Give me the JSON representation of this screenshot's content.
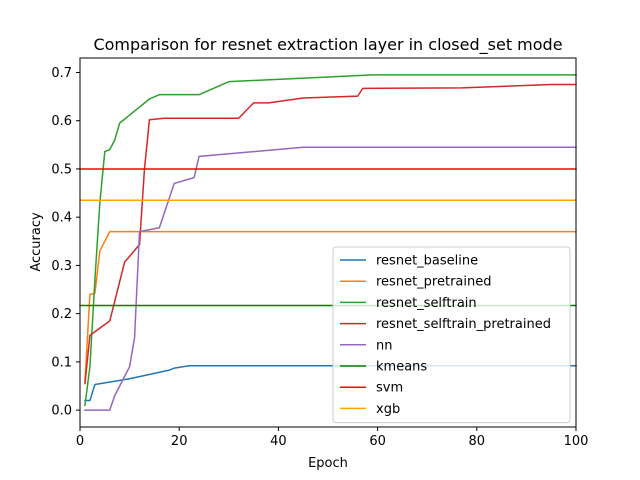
{
  "chart_data": {
    "type": "line",
    "title": "Comparison for resnet extraction layer in closed_set mode",
    "xlabel": "Epoch",
    "ylabel": "Accuracy",
    "xlim": [
      0,
      100
    ],
    "ylim": [
      -0.035,
      0.73
    ],
    "xticks": [
      0,
      20,
      40,
      60,
      80,
      100
    ],
    "yticks": [
      0.0,
      0.1,
      0.2,
      0.3,
      0.4,
      0.5,
      0.6,
      0.7
    ],
    "xtick_labels": [
      "0",
      "20",
      "40",
      "60",
      "80",
      "100"
    ],
    "ytick_labels": [
      "0.0",
      "0.1",
      "0.2",
      "0.3",
      "0.4",
      "0.5",
      "0.6",
      "0.7"
    ],
    "grid": false,
    "legend_position": "lower-right",
    "series": [
      {
        "name": "resnet_baseline",
        "color": "#1f77b4",
        "points": [
          [
            1,
            0.02
          ],
          [
            2,
            0.02
          ],
          [
            3,
            0.053
          ],
          [
            10,
            0.065
          ],
          [
            18,
            0.083
          ],
          [
            19,
            0.087
          ],
          [
            22,
            0.092
          ],
          [
            100,
            0.092
          ]
        ]
      },
      {
        "name": "resnet_pretrained",
        "color": "#ff7f0e",
        "points": [
          [
            1,
            0.06
          ],
          [
            2,
            0.24
          ],
          [
            3,
            0.242
          ],
          [
            4,
            0.33
          ],
          [
            5,
            0.35
          ],
          [
            6,
            0.37
          ],
          [
            100,
            0.37
          ]
        ]
      },
      {
        "name": "resnet_selftrain",
        "color": "#2ca02c",
        "points": [
          [
            1,
            0.01
          ],
          [
            2,
            0.09
          ],
          [
            3,
            0.27
          ],
          [
            4,
            0.43
          ],
          [
            5,
            0.536
          ],
          [
            6,
            0.54
          ],
          [
            7,
            0.56
          ],
          [
            8,
            0.595
          ],
          [
            14,
            0.645
          ],
          [
            16,
            0.654
          ],
          [
            24,
            0.654
          ],
          [
            30,
            0.681
          ],
          [
            59,
            0.695
          ],
          [
            100,
            0.695
          ]
        ]
      },
      {
        "name": "resnet_selftrain_pretrained",
        "color": "#d62728",
        "points": [
          [
            1,
            0.055
          ],
          [
            2,
            0.155
          ],
          [
            6,
            0.185
          ],
          [
            9,
            0.307
          ],
          [
            12,
            0.343
          ],
          [
            13,
            0.5
          ],
          [
            14,
            0.602
          ],
          [
            17,
            0.605
          ],
          [
            32,
            0.605
          ],
          [
            35,
            0.637
          ],
          [
            38,
            0.637
          ],
          [
            45,
            0.647
          ],
          [
            56,
            0.651
          ],
          [
            57,
            0.667
          ],
          [
            77,
            0.668
          ],
          [
            95,
            0.675
          ],
          [
            100,
            0.675
          ]
        ]
      },
      {
        "name": "nn",
        "color": "#9467bd",
        "points": [
          [
            1,
            0.0
          ],
          [
            6,
            0.0
          ],
          [
            7,
            0.03
          ],
          [
            10,
            0.09
          ],
          [
            11,
            0.15
          ],
          [
            12,
            0.37
          ],
          [
            16,
            0.378
          ],
          [
            19,
            0.47
          ],
          [
            23,
            0.482
          ],
          [
            24,
            0.526
          ],
          [
            45,
            0.545
          ],
          [
            100,
            0.545
          ]
        ]
      },
      {
        "name": "kmeans",
        "color": "#008000",
        "points": [
          [
            0,
            0.217
          ],
          [
            100,
            0.217
          ]
        ]
      },
      {
        "name": "svm",
        "color": "#ff0000",
        "points": [
          [
            0,
            0.5
          ],
          [
            100,
            0.5
          ]
        ]
      },
      {
        "name": "xgb",
        "color": "#ffa500",
        "points": [
          [
            0,
            0.435
          ],
          [
            100,
            0.435
          ]
        ]
      }
    ]
  }
}
